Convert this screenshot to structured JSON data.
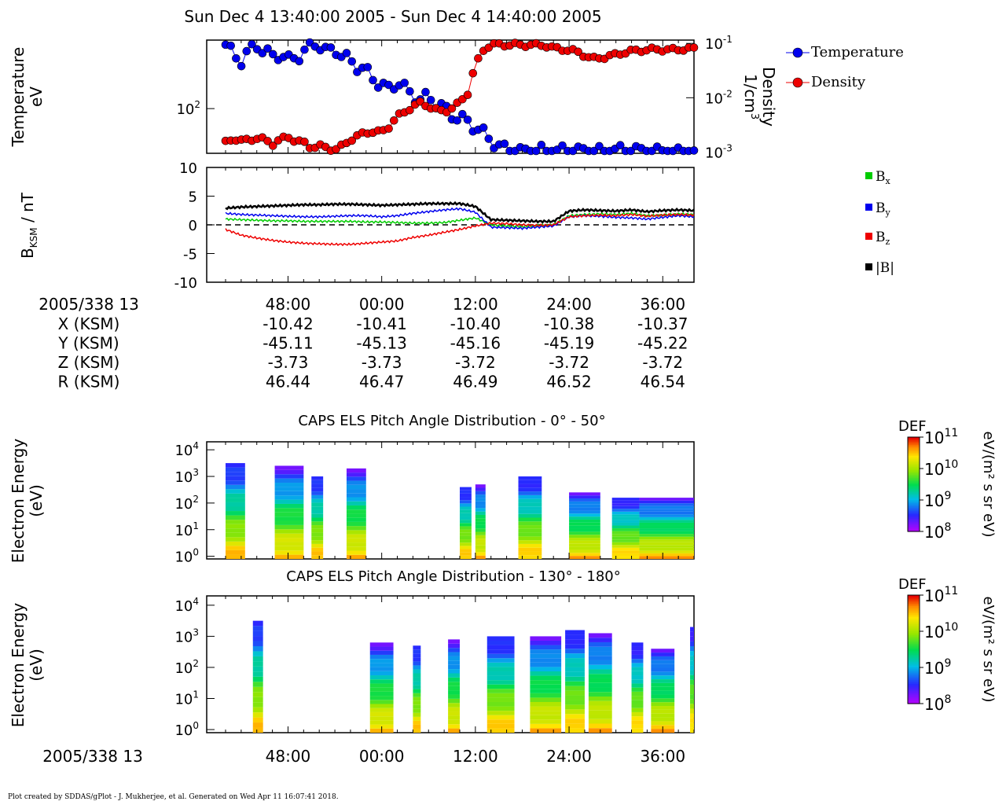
{
  "title": "Sun Dec 4 13:40:00 2005 - Sun Dec 4 14:40:00 2005",
  "footer": "Plot created by SDDAS/gPlot - J. Mukherjee, et al.  Generated on Wed Apr 11 16:07:41 2018.",
  "colors": {
    "temperature": "#0000ee",
    "density": "#ee0000",
    "bx": "#00cc00",
    "by": "#0000ee",
    "bz": "#ee0000",
    "bmag": "#000000"
  },
  "chart_data": [
    {
      "id": "plasma",
      "type": "line",
      "ylabel_left_line1": "Temperature",
      "ylabel_left_line2": "eV",
      "ylabel_right_line1": "Density",
      "ylabel_right_line2": "1/cm",
      "ylabel_right_sup": "3",
      "left_ticks": [
        {
          "base": "10",
          "exp": "2",
          "value": 100
        }
      ],
      "right_ticks": [
        {
          "base": "10",
          "exp": "-1",
          "value": 0.1
        },
        {
          "base": "10",
          "exp": "-2",
          "value": 0.01
        },
        {
          "base": "10",
          "exp": "-3",
          "value": 0.001
        }
      ],
      "legend": [
        "Temperature",
        "Density"
      ],
      "x_minutes": [
        0,
        1,
        2,
        3,
        4,
        5,
        6,
        7,
        8,
        9,
        10,
        11,
        12,
        13,
        14,
        15,
        16,
        17,
        18,
        19,
        20,
        21,
        22,
        23,
        24,
        25,
        26,
        27,
        28,
        29,
        30,
        31,
        32,
        33,
        34,
        35,
        36,
        37,
        38,
        39,
        40,
        41,
        42,
        43,
        44,
        45,
        46,
        47,
        48,
        49,
        50,
        51,
        52,
        53,
        54,
        55,
        56,
        57,
        58,
        59,
        60
      ],
      "series": [
        {
          "name": "Temperature",
          "log": true,
          "values": [
            235,
            205,
            190,
            215,
            235,
            215,
            200,
            210,
            190,
            200,
            210,
            245,
            235,
            210,
            225,
            200,
            190,
            175,
            165,
            150,
            135,
            130,
            145,
            130,
            120,
            112,
            118,
            108,
            100,
            92,
            88,
            84,
            78,
            72,
            66,
            60,
            58,
            56,
            56,
            57,
            57,
            57,
            56,
            57,
            56,
            57,
            56,
            57,
            56,
            56,
            58,
            56,
            60,
            56,
            55,
            56,
            56,
            55,
            55,
            55,
            55
          ]
        },
        {
          "name": "Density",
          "log": true,
          "values": [
            0.0015,
            0.0018,
            0.0016,
            0.0017,
            0.0018,
            0.0017,
            0.0014,
            0.0017,
            0.0019,
            0.0016,
            0.0015,
            0.0012,
            0.0013,
            0.0012,
            0.0011,
            0.0013,
            0.0017,
            0.002,
            0.0023,
            0.0024,
            0.0023,
            0.003,
            0.0045,
            0.0055,
            0.007,
            0.008,
            0.007,
            0.006,
            0.0055,
            0.0065,
            0.008,
            0.012,
            0.035,
            0.075,
            0.095,
            0.095,
            0.094,
            0.095,
            0.093,
            0.094,
            0.093,
            0.092,
            0.082,
            0.078,
            0.076,
            0.07,
            0.06,
            0.052,
            0.054,
            0.058,
            0.062,
            0.068,
            0.072,
            0.075,
            0.076,
            0.078,
            0.077,
            0.076,
            0.078,
            0.079,
            0.08
          ]
        }
      ]
    },
    {
      "id": "bfield",
      "type": "line",
      "ylabel": "B",
      "ylabel_sub": "KSM",
      "ylabel_rest": " / nT",
      "ylim": [
        -10,
        10
      ],
      "y_ticks": [
        "10",
        "5",
        "0",
        "-5",
        "-10"
      ],
      "legend": [
        "B",
        "B",
        "B",
        "|B|"
      ],
      "legend_subs": [
        "x",
        "y",
        "z",
        ""
      ],
      "x_minutes": [
        0,
        2,
        4,
        6,
        8,
        10,
        12,
        14,
        16,
        18,
        20,
        22,
        24,
        26,
        28,
        30,
        32,
        34,
        36,
        38,
        40,
        42,
        44,
        46,
        48,
        50,
        52,
        54,
        56,
        58,
        60
      ],
      "series": [
        {
          "name": "Bx",
          "values": [
            1.0,
            0.9,
            0.8,
            0.7,
            0.7,
            0.6,
            0.6,
            0.6,
            0.6,
            0.5,
            0.5,
            0.4,
            0.3,
            0.3,
            0.4,
            0.8,
            1.2,
            0.0,
            -0.2,
            -0.3,
            -0.1,
            0.0,
            1.6,
            1.8,
            1.9,
            1.8,
            2.0,
            1.6,
            1.7,
            1.9,
            1.8
          ]
        },
        {
          "name": "By",
          "values": [
            2.0,
            1.8,
            1.7,
            1.6,
            1.5,
            1.4,
            1.4,
            1.5,
            1.6,
            1.6,
            1.4,
            1.6,
            2.0,
            2.3,
            2.6,
            2.8,
            2.2,
            -0.4,
            -0.5,
            -0.6,
            -0.4,
            -0.2,
            1.4,
            1.6,
            1.5,
            1.3,
            1.2,
            1.0,
            1.3,
            1.6,
            1.4
          ]
        },
        {
          "name": "Bz",
          "values": [
            -0.8,
            -1.8,
            -2.3,
            -2.7,
            -3.0,
            -3.2,
            -3.3,
            -3.4,
            -3.4,
            -3.2,
            -3.0,
            -2.8,
            -2.2,
            -1.8,
            -1.3,
            -0.8,
            -0.2,
            0.3,
            0.2,
            0.0,
            -0.1,
            0.0,
            1.4,
            1.6,
            1.7,
            1.6,
            1.8,
            1.5,
            1.7,
            1.8,
            1.7
          ]
        },
        {
          "name": "|B|",
          "values": [
            2.9,
            3.1,
            3.2,
            3.3,
            3.4,
            3.5,
            3.5,
            3.6,
            3.6,
            3.5,
            3.4,
            3.5,
            3.6,
            3.7,
            3.7,
            3.7,
            3.2,
            0.9,
            0.8,
            0.7,
            0.6,
            0.6,
            2.4,
            2.6,
            2.5,
            2.4,
            2.6,
            2.3,
            2.5,
            2.6,
            2.5
          ]
        }
      ]
    },
    {
      "id": "els1",
      "type": "heatmap",
      "title": "CAPS ELS Pitch Angle Distribution - 0° - 50°",
      "ylabel_line1": "Electron Energy",
      "ylabel_line2": "(eV)",
      "y_ticks": [
        {
          "base": "10",
          "exp": "4"
        },
        {
          "base": "10",
          "exp": "3"
        },
        {
          "base": "10",
          "exp": "2"
        },
        {
          "base": "10",
          "exp": "1"
        },
        {
          "base": "10",
          "exp": "0"
        }
      ],
      "colorbar": {
        "title": "DEF",
        "unit": "eV/(m² s sr eV)",
        "ticks": [
          {
            "base": "10",
            "exp": "11"
          },
          {
            "base": "10",
            "exp": "10"
          },
          {
            "base": "10",
            "exp": "9"
          },
          {
            "base": "10",
            "exp": "8"
          }
        ]
      },
      "blocks": [
        {
          "start": 0.0,
          "end": 2.5,
          "emax": 3.5
        },
        {
          "start": 6.3,
          "end": 10.0,
          "emax": 3.4
        },
        {
          "start": 11.0,
          "end": 12.5,
          "emax": 3.0
        },
        {
          "start": 15.5,
          "end": 18.0,
          "emax": 3.3
        },
        {
          "start": 30.0,
          "end": 31.5,
          "emax": 2.6
        },
        {
          "start": 32.0,
          "end": 33.3,
          "emax": 2.7
        },
        {
          "start": 37.5,
          "end": 40.5,
          "emax": 3.0
        },
        {
          "start": 44.0,
          "end": 48.0,
          "emax": 2.4
        },
        {
          "start": 49.5,
          "end": 53.0,
          "emax": 2.2
        },
        {
          "start": 53.0,
          "end": 60.0,
          "emax": 2.2
        }
      ]
    },
    {
      "id": "els2",
      "type": "heatmap",
      "title": "CAPS ELS Pitch Angle Distribution - 130° - 180°",
      "ylabel_line1": "Electron Energy",
      "ylabel_line2": "(eV)",
      "y_ticks": [
        {
          "base": "10",
          "exp": "4"
        },
        {
          "base": "10",
          "exp": "3"
        },
        {
          "base": "10",
          "exp": "2"
        },
        {
          "base": "10",
          "exp": "1"
        },
        {
          "base": "10",
          "exp": "0"
        }
      ],
      "colorbar": {
        "title": "DEF",
        "unit": "eV/(m² s sr eV)",
        "ticks": [
          {
            "base": "10",
            "exp": "11"
          },
          {
            "base": "10",
            "exp": "10"
          },
          {
            "base": "10",
            "exp": "9"
          },
          {
            "base": "10",
            "exp": "8"
          }
        ]
      },
      "blocks": [
        {
          "start": 3.5,
          "end": 4.8,
          "emax": 3.5
        },
        {
          "start": 18.5,
          "end": 21.5,
          "emax": 2.8
        },
        {
          "start": 24.0,
          "end": 25.0,
          "emax": 2.7
        },
        {
          "start": 28.5,
          "end": 30.0,
          "emax": 2.9
        },
        {
          "start": 33.5,
          "end": 37.0,
          "emax": 3.0
        },
        {
          "start": 39.0,
          "end": 43.0,
          "emax": 3.0
        },
        {
          "start": 43.5,
          "end": 46.0,
          "emax": 3.2
        },
        {
          "start": 46.5,
          "end": 49.5,
          "emax": 3.1
        },
        {
          "start": 52.0,
          "end": 53.5,
          "emax": 2.8
        },
        {
          "start": 54.5,
          "end": 57.5,
          "emax": 2.6
        },
        {
          "start": 59.5,
          "end": 60.0,
          "emax": 3.3
        }
      ]
    }
  ],
  "ephemeris": {
    "label": "2005/338 13",
    "ticks": [
      "48:00",
      "00:00",
      "12:00",
      "24:00",
      "36:00"
    ],
    "tick_minutes": [
      8,
      20,
      32,
      44,
      56
    ],
    "rows": [
      {
        "name": "X (KSM)",
        "values": [
          "-10.42",
          "-10.41",
          "-10.40",
          "-10.38",
          "-10.37"
        ]
      },
      {
        "name": "Y (KSM)",
        "values": [
          "-45.11",
          "-45.13",
          "-45.16",
          "-45.19",
          "-45.22"
        ]
      },
      {
        "name": "Z (KSM)",
        "values": [
          "-3.73",
          "-3.73",
          "-3.72",
          "-3.72",
          "-3.72"
        ]
      },
      {
        "name": "R (KSM)",
        "values": [
          "46.44",
          "46.47",
          "46.49",
          "46.52",
          "46.54"
        ]
      }
    ]
  },
  "bottom_axis": {
    "label": "2005/338 13",
    "ticks": [
      "48:00",
      "00:00",
      "12:00",
      "24:00",
      "36:00"
    ]
  }
}
